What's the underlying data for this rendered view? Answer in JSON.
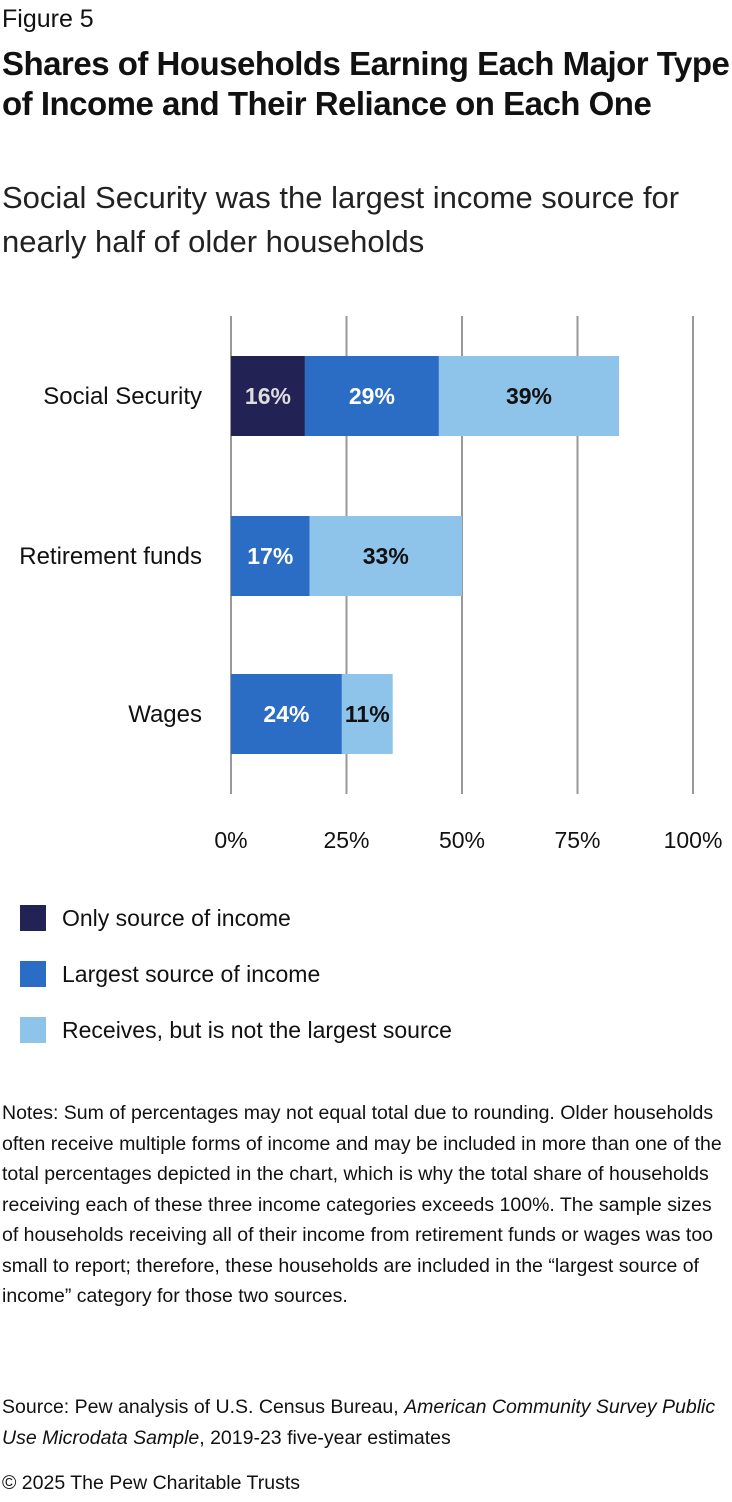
{
  "figure_label": "Figure 5",
  "title": "Shares of Households Earning Each Major Type of Income and Their Reliance on Each One",
  "subtitle": "Social Security was the largest income source for nearly half of older households",
  "colors": {
    "only": "#222255",
    "largest": "#2b6cc4",
    "receives": "#8ec3ea",
    "grid": "#999999",
    "label_light": "#dddddd",
    "label_white": "#ffffff",
    "label_dark": "#111111"
  },
  "chart_data": {
    "type": "bar",
    "orientation": "horizontal",
    "stacked": true,
    "categories": [
      "Social Security",
      "Retirement funds",
      "Wages"
    ],
    "series": [
      {
        "name": "Only source of income",
        "values": [
          16,
          0,
          0
        ],
        "labels": [
          "16%",
          "",
          ""
        ]
      },
      {
        "name": "Largest source of income",
        "values": [
          29,
          17,
          24
        ],
        "labels": [
          "29%",
          "17%",
          "24%"
        ]
      },
      {
        "name": "Receives, but is not the largest source",
        "values": [
          39,
          33,
          11
        ],
        "labels": [
          "39%",
          "33%",
          "11%"
        ]
      }
    ],
    "xlim": [
      0,
      100
    ],
    "xticks": [
      0,
      25,
      50,
      75,
      100
    ],
    "xtick_labels": [
      "0%",
      "25%",
      "50%",
      "75%",
      "100%"
    ],
    "grid": true,
    "legend_position": "bottom"
  },
  "legend": [
    {
      "label": "Only source of income",
      "color": "#222255"
    },
    {
      "label": "Largest source of income",
      "color": "#2b6cc4"
    },
    {
      "label": "Receives, but is not the largest source",
      "color": "#8ec3ea"
    }
  ],
  "notes": "Notes: Sum of percentages may not equal total due to rounding. Older households often receive multiple forms of income and may be included in more than one of the total percentages depicted in the chart, which is why the total share of households receiving each of these three income categories exceeds 100%. The sample sizes of households receiving all of their income from retirement funds or wages was too small to report; therefore, these households are included in the “largest source of income” category for those two sources.",
  "source": {
    "prefix": "Source: Pew analysis of U.S. Census Bureau, ",
    "italic": "American Community Survey Public Use Microdata Sample",
    "suffix": ", 2019-23 five-year estimates"
  },
  "copyright": "© 2025 The Pew Charitable Trusts"
}
